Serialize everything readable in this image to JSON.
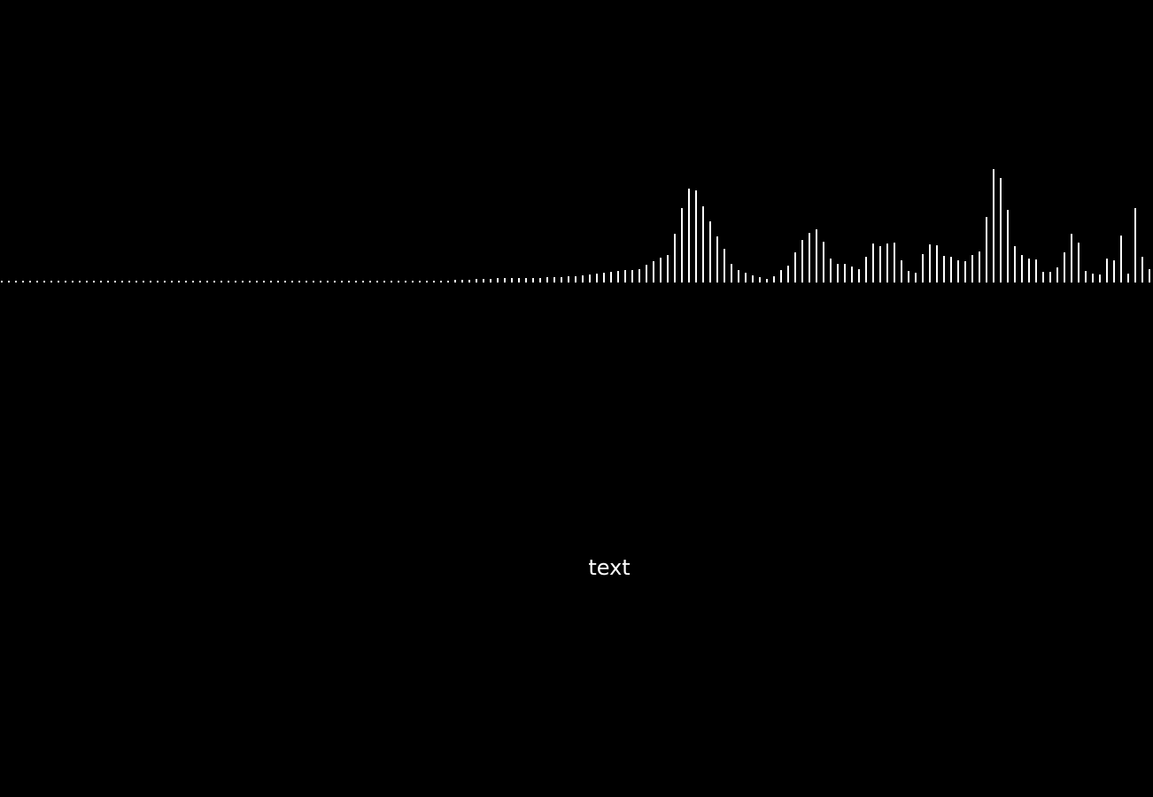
{
  "caption": "text",
  "colors": {
    "background": "#000000",
    "bar": "#ffffff",
    "text": "#ffffff"
  },
  "visualizer": {
    "bar_count": 163,
    "level_scale_max": 140,
    "levels": [
      2,
      2,
      2,
      2,
      2,
      2,
      2,
      2,
      2,
      2,
      2,
      2,
      2,
      2,
      2,
      2,
      2,
      2,
      2,
      2,
      2,
      2,
      2,
      2,
      2,
      2,
      2,
      2,
      2,
      2,
      2,
      2,
      2,
      2,
      2,
      2,
      2,
      2,
      2,
      2,
      2,
      2,
      2,
      2,
      2,
      2,
      2,
      2,
      2,
      2,
      2,
      2,
      2,
      2,
      2,
      2,
      2,
      2,
      2,
      2,
      2,
      2,
      2,
      2,
      3,
      3,
      3,
      4,
      4,
      4,
      5,
      5,
      5,
      5,
      5,
      5,
      5,
      6,
      6,
      6,
      7,
      7,
      8,
      9,
      10,
      11,
      12,
      13,
      14,
      14,
      15,
      20,
      24,
      28,
      31,
      55,
      84,
      106,
      104,
      86,
      69,
      52,
      38,
      21,
      14,
      11,
      8,
      6,
      4,
      7,
      14,
      19,
      34,
      48,
      56,
      60,
      46,
      27,
      21,
      21,
      18,
      15,
      29,
      44,
      41,
      44,
      45,
      25,
      13,
      11,
      32,
      43,
      42,
      30,
      29,
      25,
      24,
      31,
      35,
      74,
      128,
      118,
      82,
      41,
      31,
      27,
      26,
      12,
      12,
      17,
      34,
      55,
      45,
      13,
      10,
      9,
      27,
      25,
      53,
      10,
      84,
      29,
      15
    ]
  }
}
